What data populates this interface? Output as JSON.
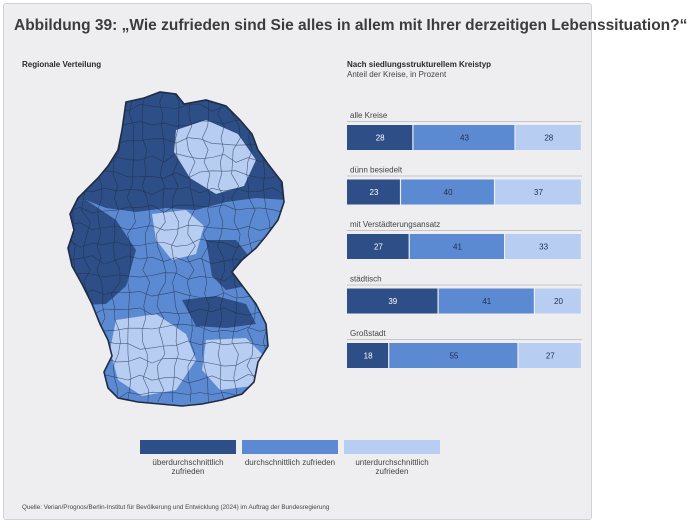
{
  "title": "Abbildung 39: „Wie zufrieden sind Sie alles in allem mit Ihrer derzeitigen Lebenssituation?“",
  "left_panel": {
    "subtitle": "Regionale Verteilung"
  },
  "right_panel": {
    "subtitle": "Nach siedlungsstrukturellem Kreistyp",
    "note": "Anteil der Kreise, in Prozent"
  },
  "legend": [
    {
      "label": "überdurchschnittlich zufrieden",
      "color": "#2d4e86"
    },
    {
      "label": "durchschnittlich zufrieden",
      "color": "#5b8ad2"
    },
    {
      "label": "unterdurchschnittlich zufrieden",
      "color": "#b7cdf2"
    }
  ],
  "source": "Quelle: Verian/Prognos/Berlin-Institut für Bevölkerung und Entwicklung (2024) im Auftrag der Bundesregierung",
  "chart_data": {
    "type": "bar",
    "orientation": "horizontal",
    "stacked": true,
    "unit": "%",
    "categories": [
      "alle Kreise",
      "dünn besiedelt",
      "mit Verstädterungsansatz",
      "städtisch",
      "Großstadt"
    ],
    "series": [
      {
        "name": "überdurchschnittlich zufrieden",
        "color": "#2d4e86",
        "values": [
          28,
          23,
          27,
          39,
          18
        ]
      },
      {
        "name": "durchschnittlich zufrieden",
        "color": "#5b8ad2",
        "values": [
          43,
          40,
          41,
          41,
          55
        ]
      },
      {
        "name": "unterdurchschnittlich zufrieden",
        "color": "#b7cdf2",
        "values": [
          28,
          37,
          33,
          20,
          27
        ]
      }
    ],
    "xlim": [
      0,
      100
    ]
  }
}
